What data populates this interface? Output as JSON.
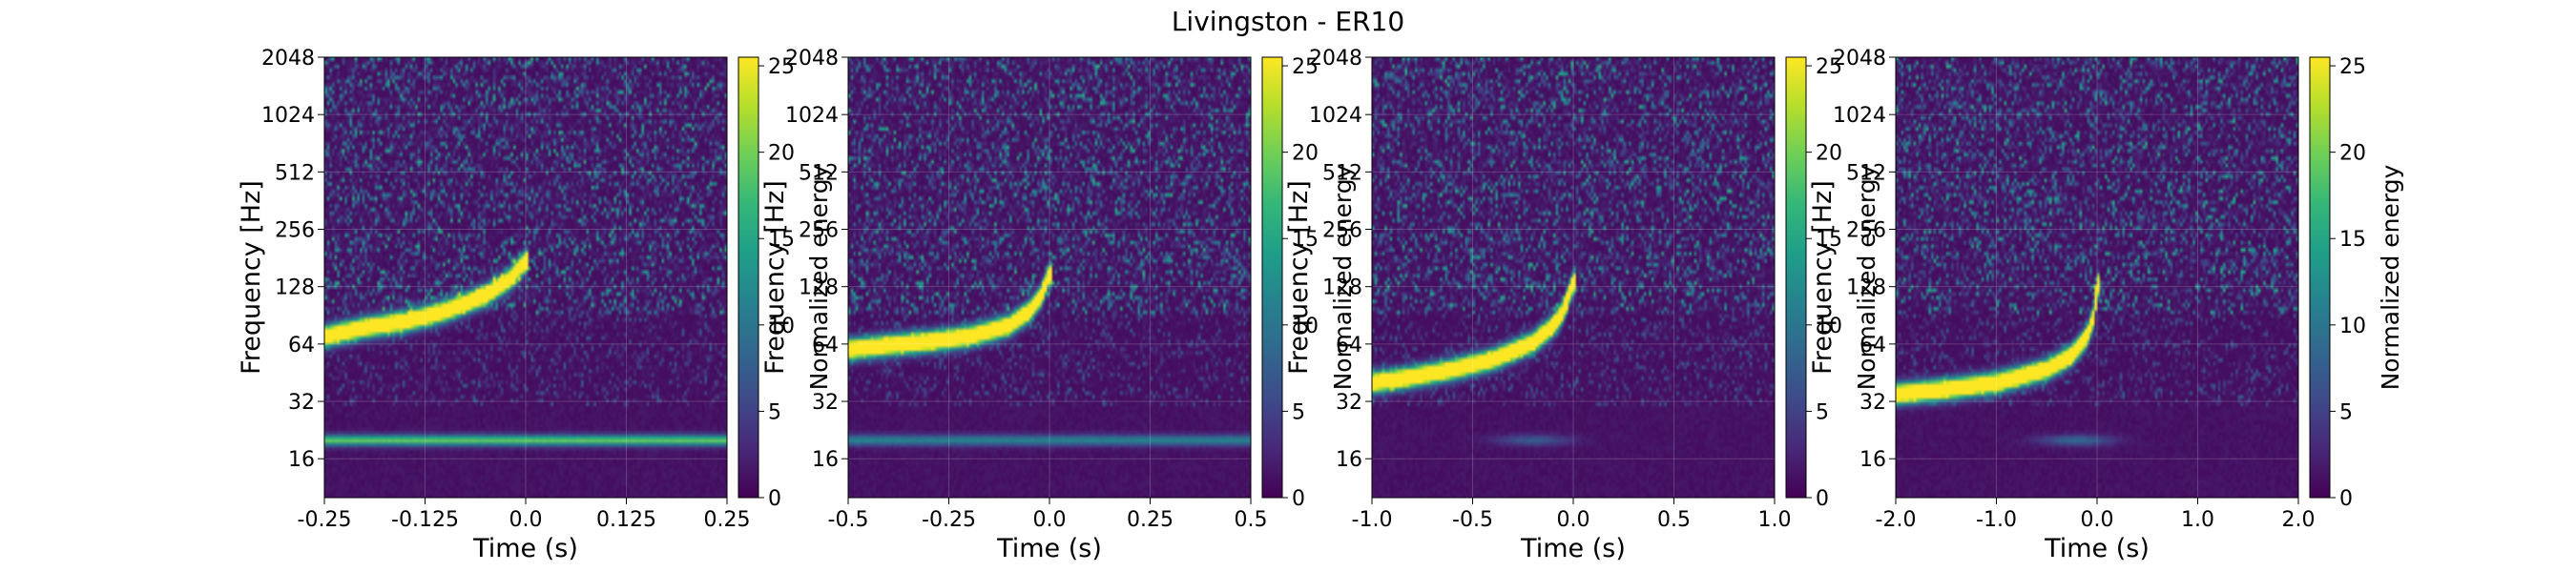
{
  "figure": {
    "title": "Livingston - ER10"
  },
  "colormap": {
    "name": "viridis",
    "stops": [
      "#440154",
      "#482878",
      "#3e4a89",
      "#31688e",
      "#26828e",
      "#1f9e89",
      "#35b779",
      "#6ece58",
      "#b5de2b",
      "#fde725"
    ]
  },
  "chart_data": [
    {
      "type": "heatmap",
      "panel": 1,
      "title": "",
      "xlabel": "Time (s)",
      "ylabel": "Frequency [Hz]",
      "y_scale": "log2",
      "grid": true,
      "xlim": [
        -0.25,
        0.25
      ],
      "x_ticks": [
        -0.25,
        -0.125,
        0,
        0.125,
        0.25
      ],
      "x_tick_labels": [
        "-0.25",
        "-0.125",
        "0.0",
        "0.125",
        "0.25"
      ],
      "ylim": [
        10,
        2048
      ],
      "y_ticks": [
        16,
        32,
        64,
        128,
        256,
        512,
        1024,
        2048
      ],
      "y_tick_labels": [
        "16",
        "32",
        "64",
        "128",
        "256",
        "512",
        "1024",
        "2048"
      ],
      "colorbar": {
        "label": "Normalized energy",
        "range": [
          0,
          25.5
        ],
        "ticks": [
          0,
          5,
          10,
          15,
          20,
          25
        ],
        "tick_labels": [
          "0",
          "5",
          "10",
          "15",
          "20",
          "25"
        ]
      },
      "chirp_track": {
        "t": [
          -0.25,
          -0.2,
          -0.15,
          -0.1,
          -0.05,
          -0.02,
          0.0
        ],
        "f": [
          70,
          78,
          84,
          95,
          115,
          140,
          175
        ]
      },
      "line_feature": {
        "frequency": 20,
        "intensity": 0.7
      }
    },
    {
      "type": "heatmap",
      "panel": 2,
      "title": "",
      "xlabel": "Time (s)",
      "ylabel": "Frequency [Hz]",
      "y_scale": "log2",
      "grid": true,
      "xlim": [
        -0.5,
        0.5
      ],
      "x_ticks": [
        -0.5,
        -0.25,
        0,
        0.25,
        0.5
      ],
      "x_tick_labels": [
        "-0.5",
        "-0.25",
        "0.0",
        "0.25",
        "0.5"
      ],
      "ylim": [
        10,
        2048
      ],
      "y_ticks": [
        16,
        32,
        64,
        128,
        256,
        512,
        1024,
        2048
      ],
      "y_tick_labels": [
        "16",
        "32",
        "64",
        "128",
        "256",
        "512",
        "1024",
        "2048"
      ],
      "colorbar": {
        "label": "Normalized energy",
        "range": [
          0,
          25.5
        ],
        "ticks": [
          0,
          5,
          10,
          15,
          20,
          25
        ],
        "tick_labels": [
          "0",
          "5",
          "10",
          "15",
          "20",
          "25"
        ]
      },
      "chirp_track": {
        "t": [
          -0.5,
          -0.4,
          -0.3,
          -0.2,
          -0.1,
          -0.05,
          -0.02,
          0.0
        ],
        "f": [
          60,
          63,
          66,
          70,
          80,
          95,
          115,
          150
        ]
      },
      "line_feature": {
        "frequency": 20,
        "intensity": 0.4
      }
    },
    {
      "type": "heatmap",
      "panel": 3,
      "title": "",
      "xlabel": "Time (s)",
      "ylabel": "Frequency [Hz]",
      "y_scale": "log2",
      "grid": true,
      "xlim": [
        -1.0,
        1.0
      ],
      "x_ticks": [
        -1.0,
        -0.5,
        0,
        0.5,
        1.0
      ],
      "x_tick_labels": [
        "-1.0",
        "-0.5",
        "0.0",
        "0.5",
        "1.0"
      ],
      "ylim": [
        10,
        2048
      ],
      "y_ticks": [
        16,
        32,
        64,
        128,
        256,
        512,
        1024,
        2048
      ],
      "y_tick_labels": [
        "16",
        "32",
        "64",
        "128",
        "256",
        "512",
        "1024",
        "2048"
      ],
      "colorbar": {
        "label": "Normalized energy",
        "range": [
          0,
          25.5
        ],
        "ticks": [
          0,
          5,
          10,
          15,
          20,
          25
        ],
        "tick_labels": [
          "0",
          "5",
          "10",
          "15",
          "20",
          "25"
        ]
      },
      "chirp_track": {
        "t": [
          -1.0,
          -0.8,
          -0.6,
          -0.4,
          -0.2,
          -0.1,
          -0.05,
          0.0
        ],
        "f": [
          40,
          43,
          47,
          53,
          65,
          80,
          95,
          135
        ]
      },
      "line_feature": {
        "frequency": 20,
        "intensity": 0.25,
        "t_center": -0.2
      }
    },
    {
      "type": "heatmap",
      "panel": 4,
      "title": "",
      "xlabel": "Time (s)",
      "ylabel": "Frequency [Hz]",
      "y_scale": "log2",
      "grid": true,
      "xlim": [
        -2.0,
        2.0
      ],
      "x_ticks": [
        -2.0,
        -1.0,
        0,
        1.0,
        2.0
      ],
      "x_tick_labels": [
        "-2.0",
        "-1.0",
        "0.0",
        "1.0",
        "2.0"
      ],
      "ylim": [
        10,
        2048
      ],
      "y_ticks": [
        16,
        32,
        64,
        128,
        256,
        512,
        1024,
        2048
      ],
      "y_tick_labels": [
        "16",
        "32",
        "64",
        "128",
        "256",
        "512",
        "1024",
        "2048"
      ],
      "colorbar": {
        "label": "Normalized energy",
        "range": [
          0,
          25.5
        ],
        "ticks": [
          0,
          5,
          10,
          15,
          20,
          25
        ],
        "tick_labels": [
          "0",
          "5",
          "10",
          "15",
          "20",
          "25"
        ]
      },
      "chirp_track": {
        "t": [
          -2.0,
          -1.5,
          -1.0,
          -0.5,
          -0.25,
          -0.1,
          -0.03,
          0.0
        ],
        "f": [
          35,
          37,
          40,
          47,
          56,
          70,
          90,
          130
        ]
      },
      "line_feature": {
        "frequency": 20,
        "intensity": 0.3,
        "t_center": -0.2
      }
    }
  ]
}
